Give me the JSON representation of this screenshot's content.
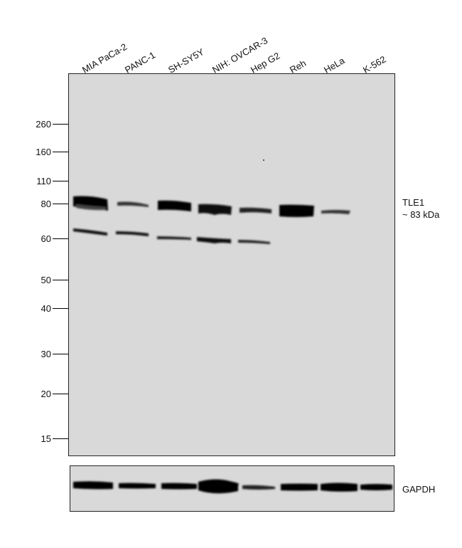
{
  "lanes": [
    "MIA PaCa-2",
    "PANC-1",
    "SH-SY5Y",
    "NIH: OVCAR-3",
    "Hep G2",
    "Reh",
    "HeLa",
    "K-562"
  ],
  "markers": [
    "260",
    "160",
    "110",
    "80",
    "60",
    "50",
    "40",
    "30",
    "20",
    "15"
  ],
  "annotations": {
    "target_name": "TLE1",
    "target_size": "~ 83 kDa",
    "loading_control": "GAPDH"
  },
  "colors": {
    "membrane": "#d9d9d9",
    "band": "#000000"
  }
}
